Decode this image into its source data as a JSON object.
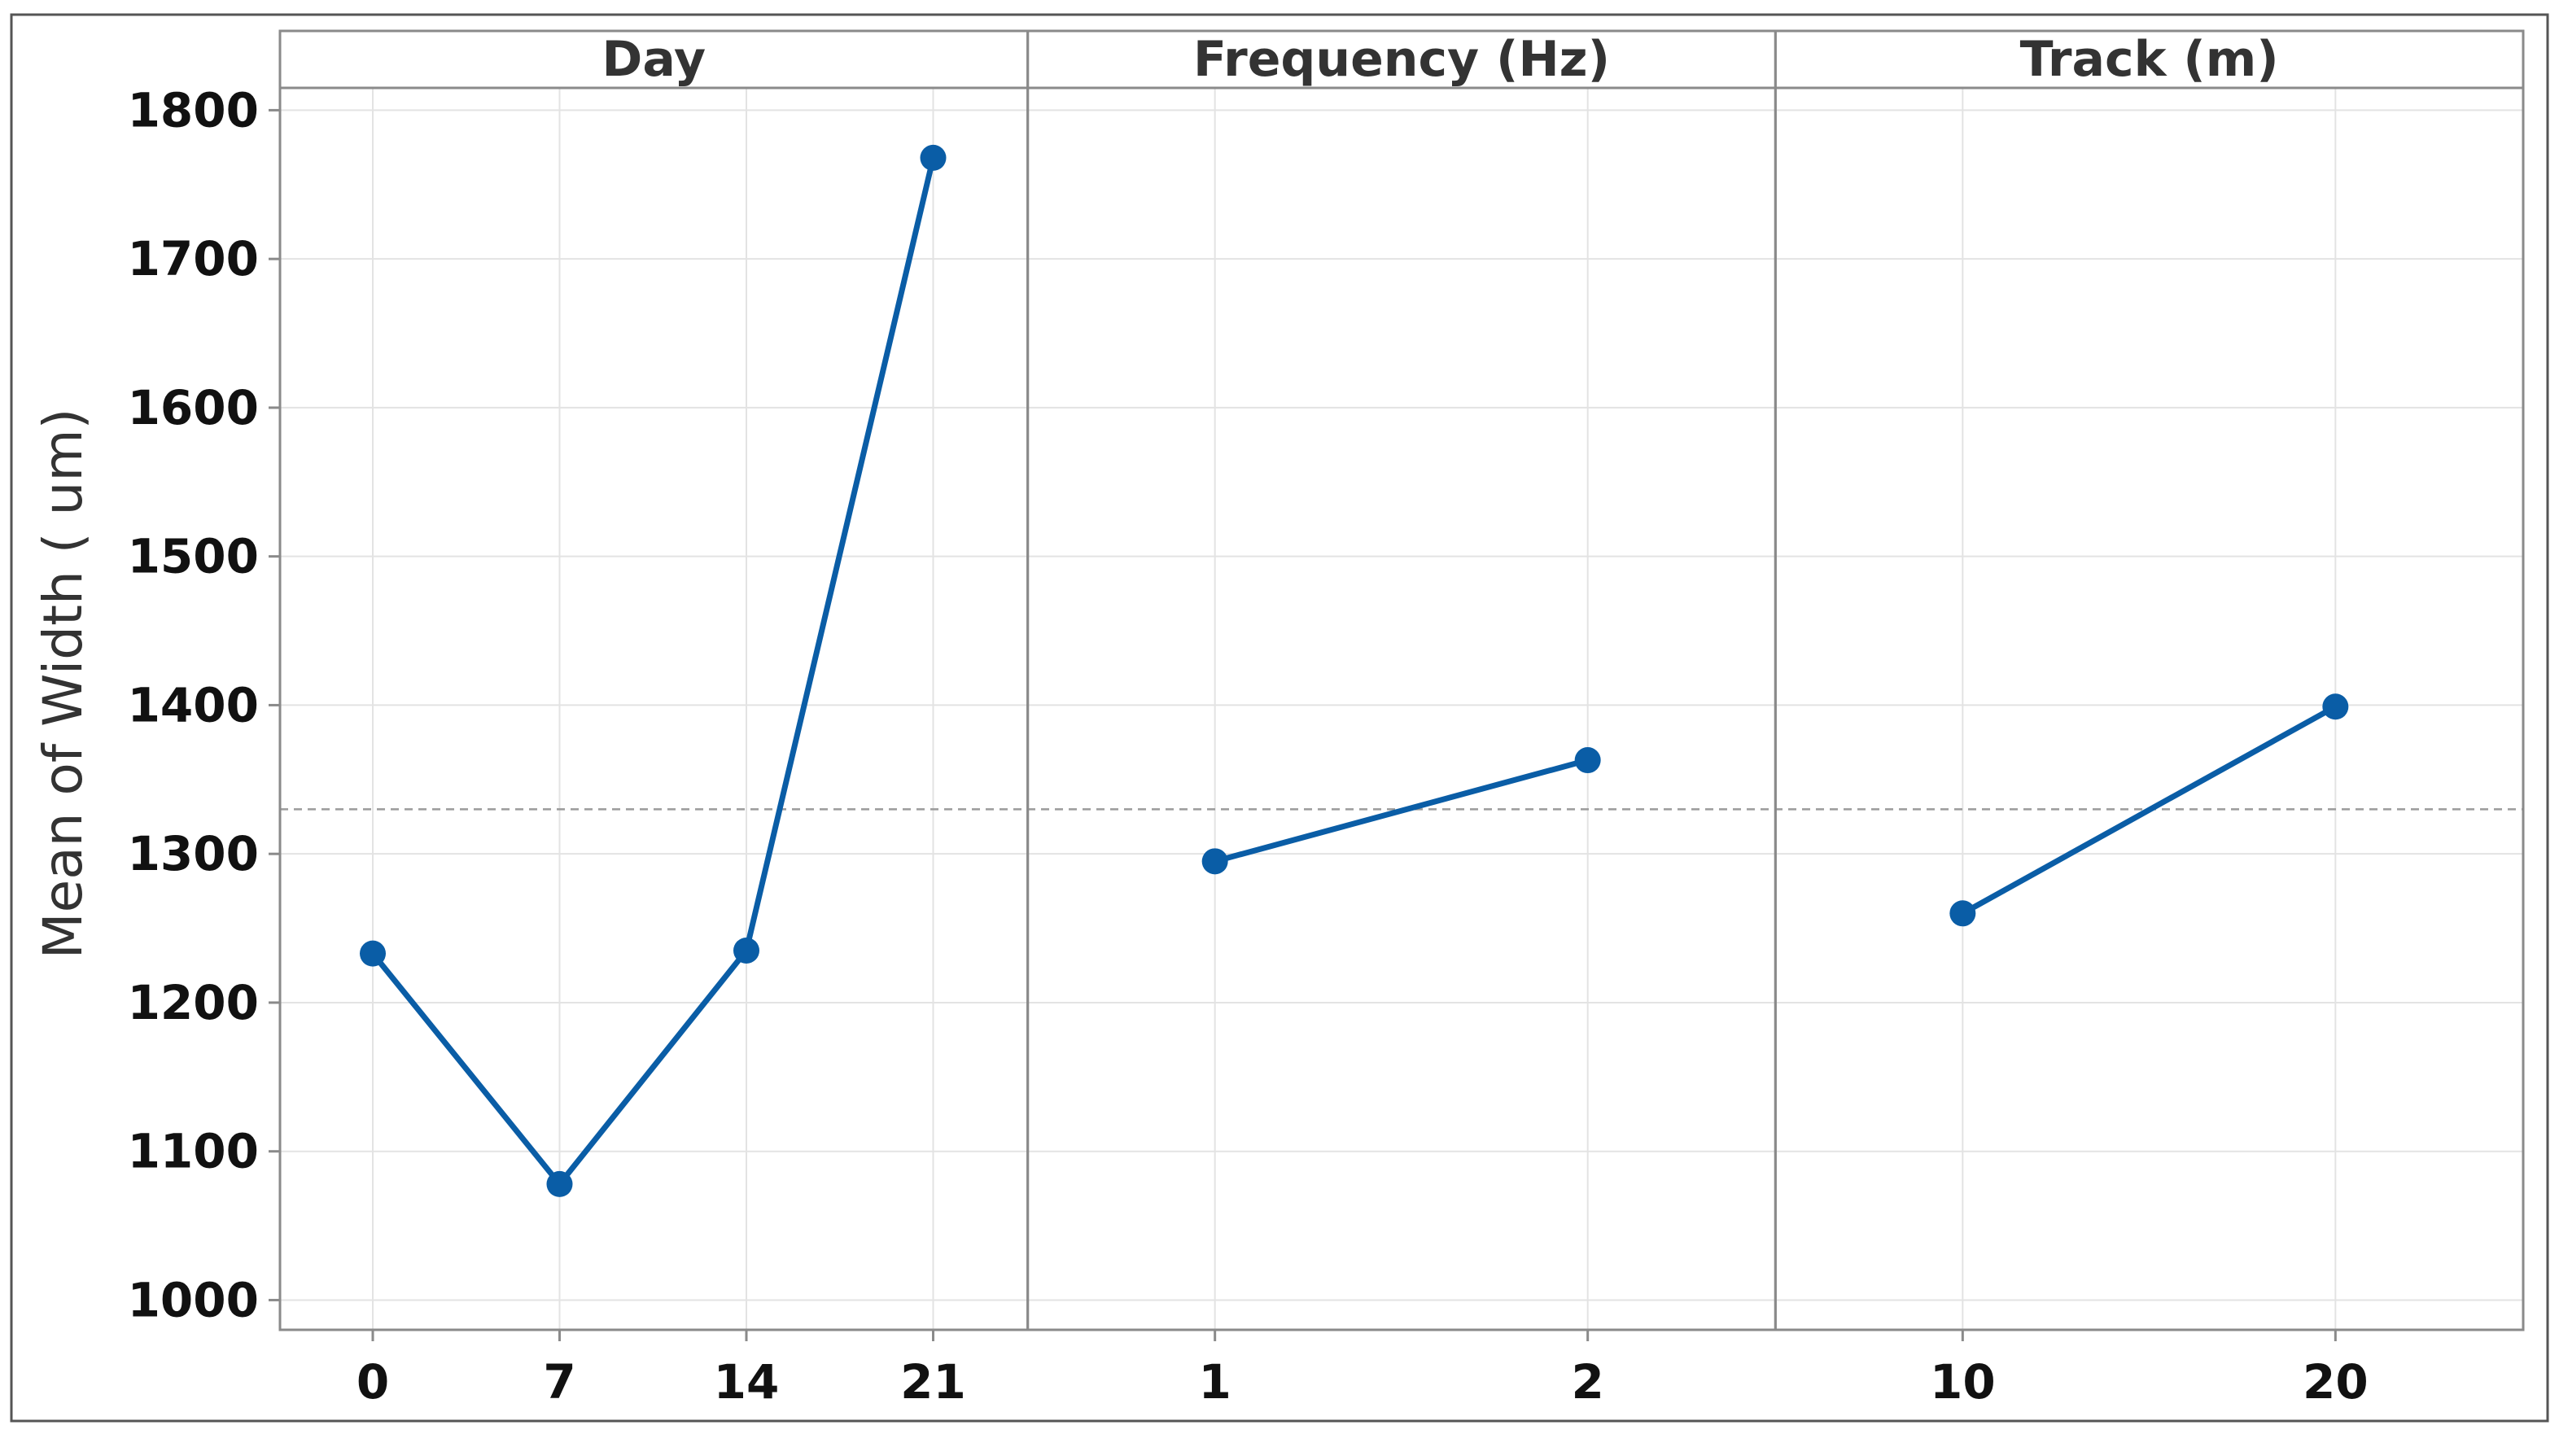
{
  "chart_data": {
    "type": "line",
    "ylabel": "Mean of Width ( um)",
    "ylim": [
      980,
      1815
    ],
    "yticks": [
      1000,
      1100,
      1200,
      1300,
      1400,
      1500,
      1600,
      1700,
      1800
    ],
    "reference_line": {
      "y": 1330,
      "style": "dashed"
    },
    "grid": true,
    "colors": {
      "series": "#0a5da6",
      "grid": "#e3e3e3",
      "frame": "#8a8a8a",
      "reference": "#9b9b9b"
    },
    "panels": [
      {
        "title": "Day",
        "categories": [
          "0",
          "7",
          "14",
          "21"
        ],
        "values": [
          1233,
          1078,
          1235,
          1768
        ]
      },
      {
        "title": "Frequency (Hz)",
        "categories": [
          "1",
          "2"
        ],
        "values": [
          1295,
          1363
        ]
      },
      {
        "title": "Track (m)",
        "categories": [
          "10",
          "20"
        ],
        "values": [
          1260,
          1399
        ]
      }
    ]
  }
}
